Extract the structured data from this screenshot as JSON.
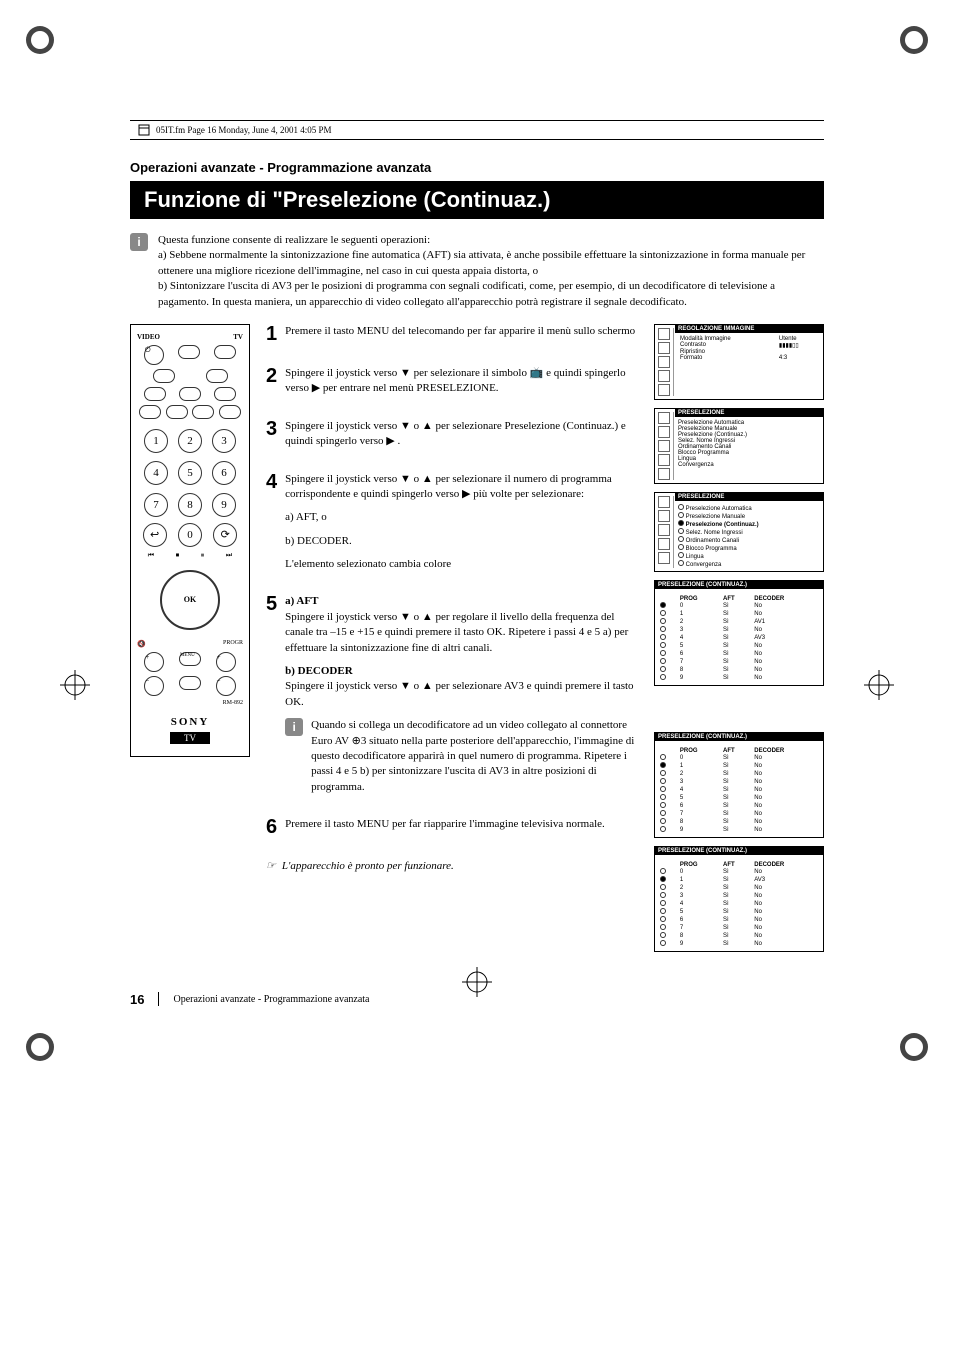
{
  "frameline": "05IT.fm  Page 16  Monday, June 4, 2001  4:05 PM",
  "section_label": "Operazioni avanzate - Programmazione avanzata",
  "title": "Funzione di \"Preselezione (Continuaz.)",
  "intro": {
    "lead": "Questa funzione consente di realizzare le seguenti operazioni:",
    "a": "a) Sebbene normalmente la sintonizzazione fine automatica (AFT) sia attivata, è anche possibile effettuare la sintonizzazione in forma manuale per ottenere una migliore ricezione dell'immagine, nel caso in cui questa appaia distorta, o",
    "b": "b) Sintonizzare l'uscita di AV3 per le posizioni di programma con segnali codificati, come, per esempio, di un decodificatore di televisione a pagamento. In questa maniera, un apparecchio di video collegato all'apparecchio potrà registrare il segnale decodificato."
  },
  "remote": {
    "top_labels": {
      "video": "VIDEO",
      "tv": "TV"
    },
    "keys": [
      "1",
      "2",
      "3",
      "4",
      "5",
      "6",
      "7",
      "8",
      "9",
      "0"
    ],
    "ok": "OK",
    "menu": "MENU",
    "progr": "PROGR",
    "model": "RM-892",
    "brand": "SONY",
    "tv_label": "TV"
  },
  "steps": {
    "s1": "Premere il tasto MENU del telecomando per far apparire il menù sullo schermo",
    "s2": "Spingere il joystick verso ▼ per selezionare il simbolo 📺 e quindi spingerlo verso ▶ per entrare nel menù PRESELEZIONE.",
    "s3": "Spingere il joystick verso ▼ o ▲ per selezionare Preselezione (Continuaz.) e quindi spingerlo verso ▶ .",
    "s4": {
      "body": "Spingere il joystick verso ▼ o ▲ per selezionare il numero di programma corrispondente e quindi spingerlo verso ▶ più volte per selezionare:",
      "a": "a) AFT, o",
      "b": "b) DECODER.",
      "note": "L'elemento selezionato cambia colore"
    },
    "s5": {
      "a_head": "a) AFT",
      "a_body": "Spingere il joystick verso ▼ o ▲ per regolare il livello della frequenza del canale tra –15 e +15 e quindi premere il tasto OK. Ripetere i passi 4 e 5 a) per effettuare la sintonizzazione fine di altri canali.",
      "b_head": "b) DECODER",
      "b_body": "Spingere il joystick verso ▼ o ▲ per selezionare AV3 e quindi premere il tasto OK.",
      "info": "Quando si collega un decodificatore ad un video collegato al connettore Euro AV ⊕3 situato nella parte posteriore dell'apparecchio, l'immagine di questo decodificatore apparirà in quel numero di programma. Ripetere i passi 4 e 5 b) per sintonizzare l'uscita di AV3 in altre posizioni di programma."
    },
    "s6": "Premere il tasto MENU  per far riapparire l'immagine televisiva normale."
  },
  "final_note": "L'apparecchio è pronto per funzionare.",
  "osd": {
    "box1": {
      "header": "REGOLAZIONE  IMMAGINE",
      "rows": [
        [
          "Modalità Immagine",
          "Utente"
        ],
        [
          "Contrasto",
          "▮▮▮▮▯▯"
        ],
        [
          "Ripristino",
          ""
        ],
        [
          "Formato",
          "4:3"
        ]
      ]
    },
    "box2": {
      "header": "PRESELEZIONE",
      "items": [
        "Preselezione Automatica",
        "Preselezione Manuale",
        "Preselezione (Continuaz.)",
        "Selez. Nome Ingressi",
        "Ordinamento Canali",
        "Blocco Programma",
        "Lingua",
        "Convergenza"
      ]
    },
    "box3": {
      "header": "PRESELEZIONE",
      "items": [
        "Preselezione Automatica",
        "Preselezione Manuale",
        "Preselezione (Continuaz.)",
        "Selez. Nome Ingressi",
        "Ordinamento Canali",
        "Blocco Programma",
        "Lingua",
        "Convergenza"
      ]
    },
    "table_header": "PRESELEZIONE  (CONTINUAZ.)",
    "table_cols": [
      "PROG",
      "AFT",
      "DECODER"
    ],
    "table4": [
      [
        "0",
        "Sì",
        "No"
      ],
      [
        "1",
        "Sì",
        "No"
      ],
      [
        "2",
        "Sì",
        "AV1"
      ],
      [
        "3",
        "Sì",
        "No"
      ],
      [
        "4",
        "Sì",
        "AV3"
      ],
      [
        "5",
        "Sì",
        "No"
      ],
      [
        "6",
        "Sì",
        "No"
      ],
      [
        "7",
        "Sì",
        "No"
      ],
      [
        "8",
        "Sì",
        "No"
      ],
      [
        "9",
        "Sì",
        "No"
      ]
    ],
    "table5": [
      [
        "0",
        "Sì",
        "No"
      ],
      [
        "1",
        "Sì",
        "No"
      ],
      [
        "2",
        "Sì",
        "No"
      ],
      [
        "3",
        "Sì",
        "No"
      ],
      [
        "4",
        "Sì",
        "No"
      ],
      [
        "5",
        "Sì",
        "No"
      ],
      [
        "6",
        "Sì",
        "No"
      ],
      [
        "7",
        "Sì",
        "No"
      ],
      [
        "8",
        "Sì",
        "No"
      ],
      [
        "9",
        "Sì",
        "No"
      ]
    ],
    "table6": [
      [
        "0",
        "Sì",
        "No"
      ],
      [
        "1",
        "Sì",
        "AV3"
      ],
      [
        "2",
        "Sì",
        "No"
      ],
      [
        "3",
        "Sì",
        "No"
      ],
      [
        "4",
        "Sì",
        "No"
      ],
      [
        "5",
        "Sì",
        "No"
      ],
      [
        "6",
        "Sì",
        "No"
      ],
      [
        "7",
        "Sì",
        "No"
      ],
      [
        "8",
        "Sì",
        "No"
      ],
      [
        "9",
        "Sì",
        "No"
      ]
    ]
  },
  "footer": {
    "page": "16",
    "text": "Operazioni avanzate - Programmazione avanzata"
  }
}
